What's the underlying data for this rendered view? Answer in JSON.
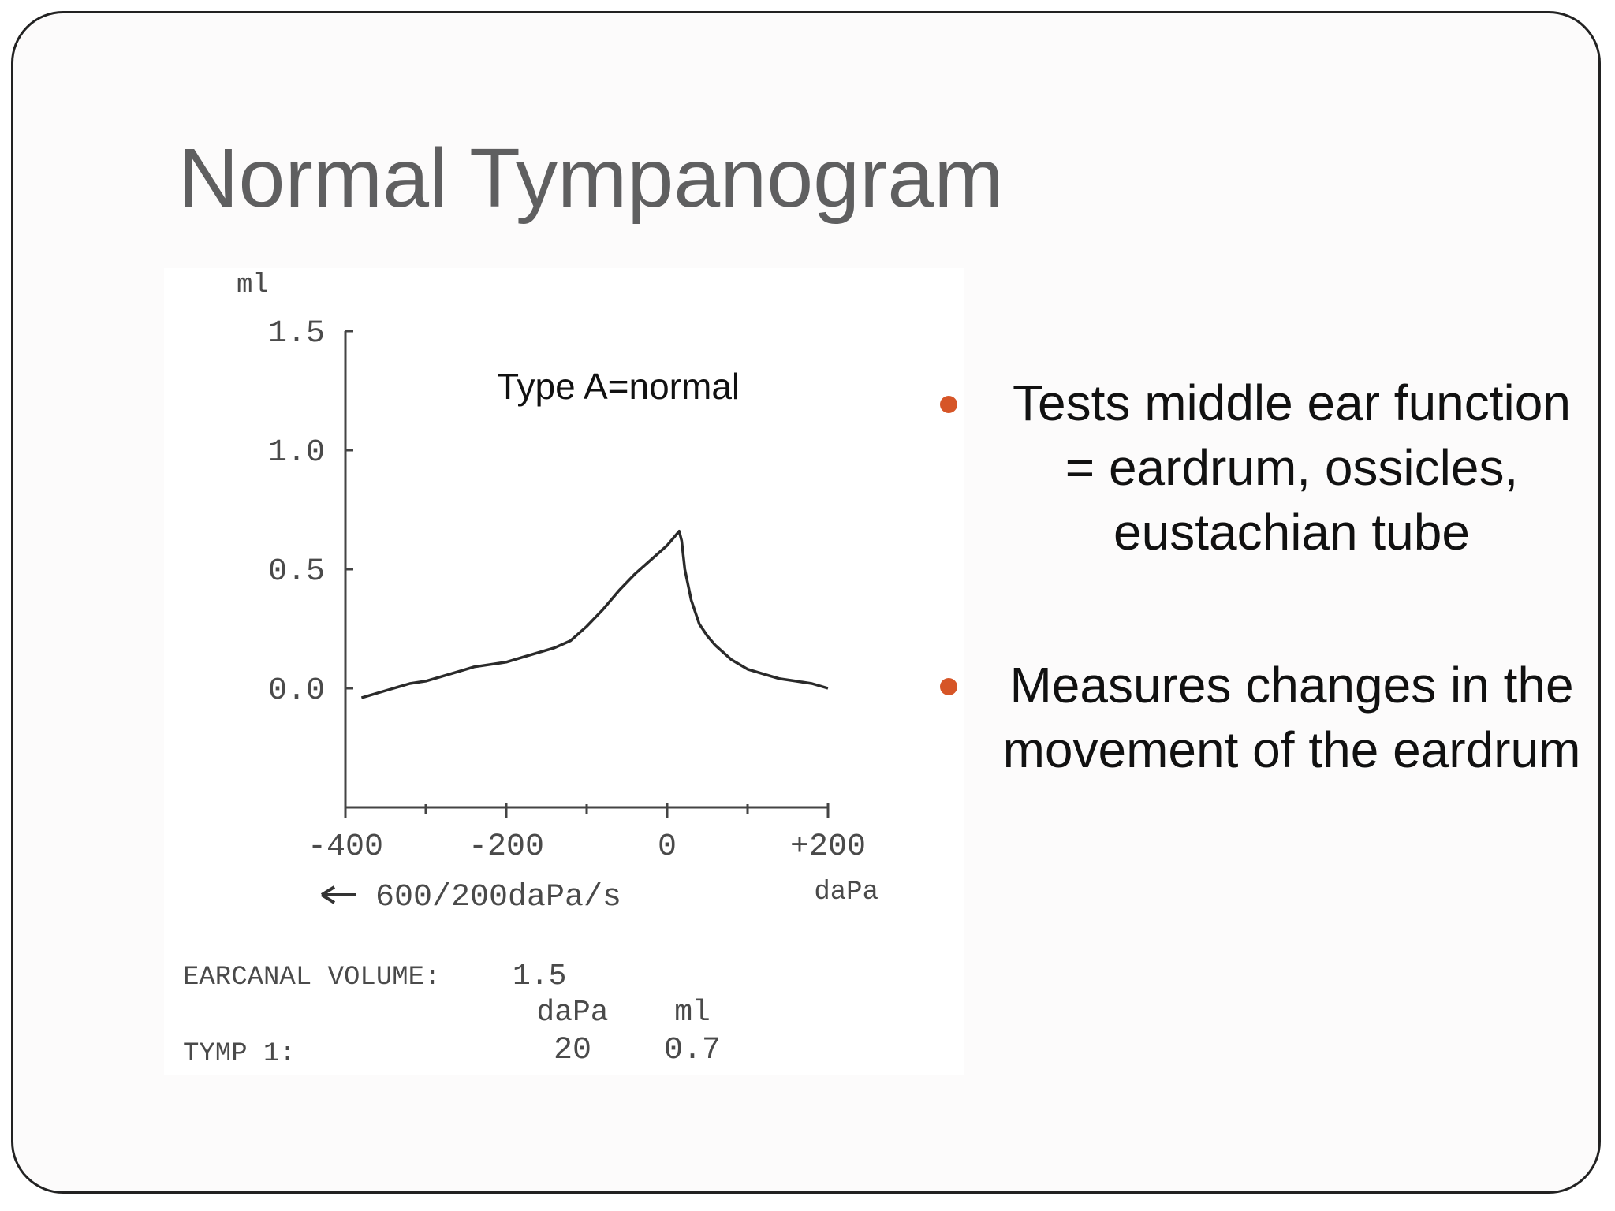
{
  "slide": {
    "title": "Normal Tympanogram",
    "bullets": [
      {
        "text": "Tests middle ear function\n= eardrum, ossicles,\neustachian tube"
      },
      {
        "text": "Measures changes in the\nmovement of the eardrum"
      }
    ],
    "colors": {
      "bullet": "#d65527",
      "title": "#5f5f60"
    }
  },
  "chart_data": {
    "type": "line",
    "annotation": "Type A=normal",
    "ylabel": "ml",
    "xlabel": "daPa",
    "x_label_note": "600/200daPa/s",
    "xlim": [
      -400,
      200
    ],
    "ylim": [
      -0.5,
      1.5
    ],
    "y_ticks": [
      {
        "value": 1.5,
        "label": "1.5"
      },
      {
        "value": 1.0,
        "label": "1.0"
      },
      {
        "value": 0.5,
        "label": "0.5"
      },
      {
        "value": 0.0,
        "label": "0.0"
      }
    ],
    "x_ticks": [
      {
        "value": -400,
        "label": "-400"
      },
      {
        "value": -200,
        "label": "-200"
      },
      {
        "value": 0,
        "label": "0"
      },
      {
        "value": 200,
        "label": "+200"
      }
    ],
    "x_minor_ticks": [
      -300,
      -100,
      100
    ],
    "grid": false,
    "series": [
      {
        "x": [
          -380,
          -360,
          -340,
          -320,
          -300,
          -280,
          -260,
          -240,
          -220,
          -200,
          -180,
          -160,
          -140,
          -120,
          -100,
          -80,
          -60,
          -40,
          -20,
          0,
          10,
          15,
          18,
          22,
          30,
          40,
          50,
          60,
          80,
          100,
          120,
          140,
          160,
          180,
          200
        ],
        "y": [
          -0.04,
          -0.02,
          0.0,
          0.02,
          0.03,
          0.05,
          0.07,
          0.09,
          0.1,
          0.11,
          0.13,
          0.15,
          0.17,
          0.2,
          0.26,
          0.33,
          0.41,
          0.48,
          0.54,
          0.6,
          0.64,
          0.66,
          0.62,
          0.5,
          0.37,
          0.27,
          0.22,
          0.18,
          0.12,
          0.08,
          0.06,
          0.04,
          0.03,
          0.02,
          0.0
        ]
      }
    ]
  },
  "readout": {
    "earcanal_label": "EARCANAL VOLUME:",
    "earcanal_value": "1.5",
    "col_unit_1": "daPa",
    "col_unit_2": "ml",
    "tymp_label": "TYMP 1:",
    "tymp_pressure": "20",
    "tymp_volume": "0.7"
  }
}
